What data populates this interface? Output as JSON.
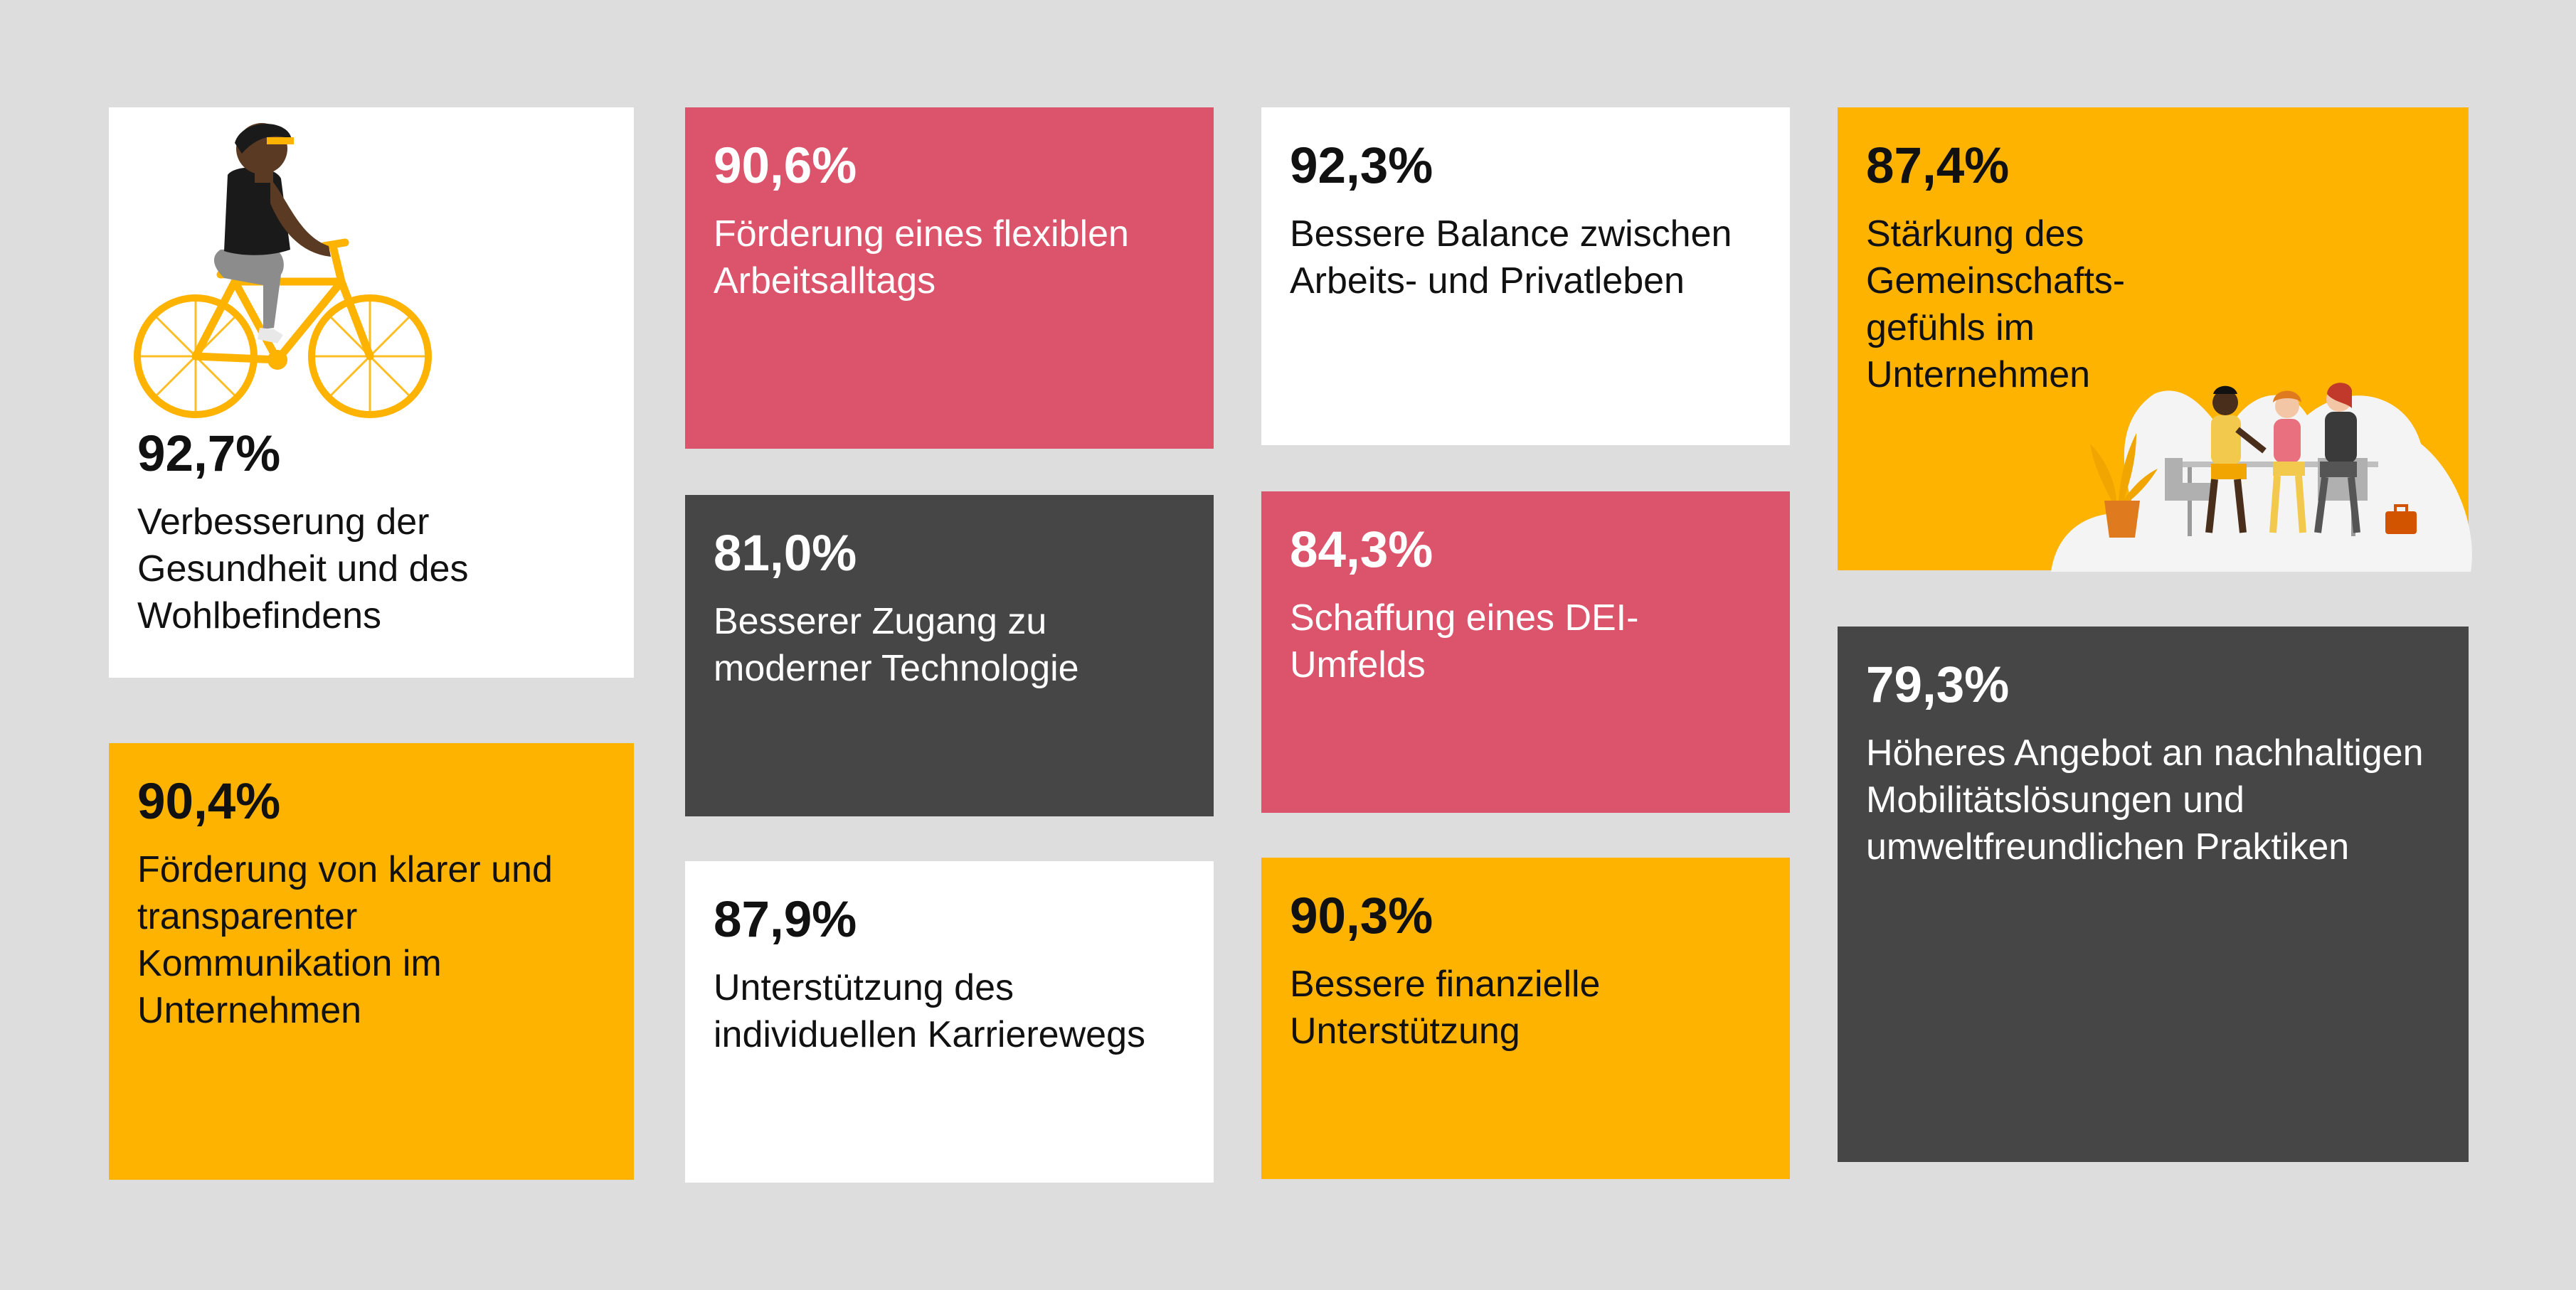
{
  "cards": {
    "health": {
      "pct": "92,7%",
      "text": "Verbesserung der Gesundheit und des Wohlbefindens",
      "illustration": "cyclist-icon"
    },
    "communication": {
      "pct": "90,4%",
      "text": "Förderung von klarer und transparenter Kommunikation im Unternehmen"
    },
    "flexible": {
      "pct": "90,6%",
      "text": "Förderung eines flexiblen Arbeitsalltags"
    },
    "technology": {
      "pct": "81,0%",
      "text": "Besserer Zugang zu moderner Technologie"
    },
    "career": {
      "pct": "87,9%",
      "text": "Unterstützung des individuellen Karrierewegs"
    },
    "balance": {
      "pct": "92,3%",
      "text": "Bessere Balance zwischen Arbeits- und Privatleben"
    },
    "dei": {
      "pct": "84,3%",
      "text": "Schaffung eines DEI-Umfelds"
    },
    "finance": {
      "pct": "90,3%",
      "text": "Bessere finanzielle Unterstützung"
    },
    "community": {
      "pct": "87,4%",
      "text": "Stärkung des Gemeinschafts-gefühls im Unternehmen",
      "illustration": "team-meeting-icon"
    },
    "mobility": {
      "pct": "79,3%",
      "text": "Höheres Angebot an nachhaltigen Mobilitätslösungen und umweltfreundlichen Praktiken"
    }
  },
  "colors": {
    "background": "#dddddd",
    "white": "#ffffff",
    "pink": "#dc546b",
    "dark": "#464646",
    "yellow": "#fdb300"
  }
}
